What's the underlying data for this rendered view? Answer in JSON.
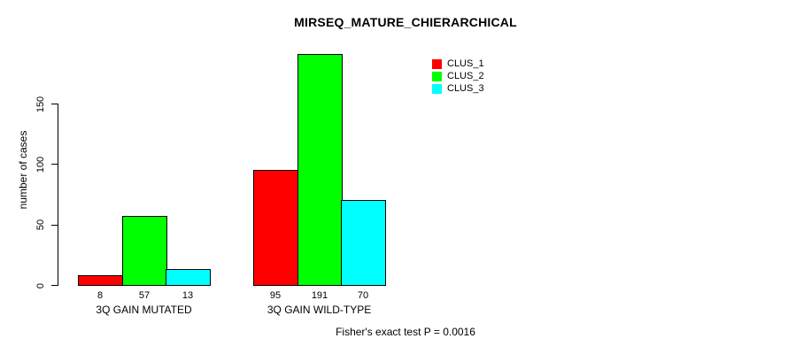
{
  "title": "MIRSEQ_MATURE_CHIERARCHICAL",
  "y_axis_label": "number of cases",
  "footer_note": "Fisher's exact test P = 0.0016",
  "legend": {
    "items": [
      {
        "label": "CLUS_1",
        "color": "#ff0000"
      },
      {
        "label": "CLUS_2",
        "color": "#00ff00"
      },
      {
        "label": "CLUS_3",
        "color": "#00ffff"
      }
    ]
  },
  "chart_data": {
    "type": "bar",
    "title": "MIRSEQ_MATURE_CHIERARCHICAL",
    "xlabel": "",
    "ylabel": "number of cases",
    "categories": [
      "3Q GAIN MUTATED",
      "3Q GAIN WILD-TYPE"
    ],
    "series": [
      {
        "name": "CLUS_1",
        "color": "#ff0000",
        "values": [
          8,
          95
        ]
      },
      {
        "name": "CLUS_2",
        "color": "#00ff00",
        "values": [
          57,
          191
        ]
      },
      {
        "name": "CLUS_3",
        "color": "#00ffff",
        "values": [
          13,
          70
        ]
      }
    ],
    "bar_value_labels": [
      [
        8,
        57,
        13
      ],
      [
        95,
        191,
        70
      ]
    ],
    "yticks": [
      0,
      50,
      100,
      150
    ],
    "ylim": [
      0,
      191
    ],
    "grid": false,
    "legend_position": "top-right-inside",
    "annotation": "Fisher's exact test P = 0.0016"
  }
}
